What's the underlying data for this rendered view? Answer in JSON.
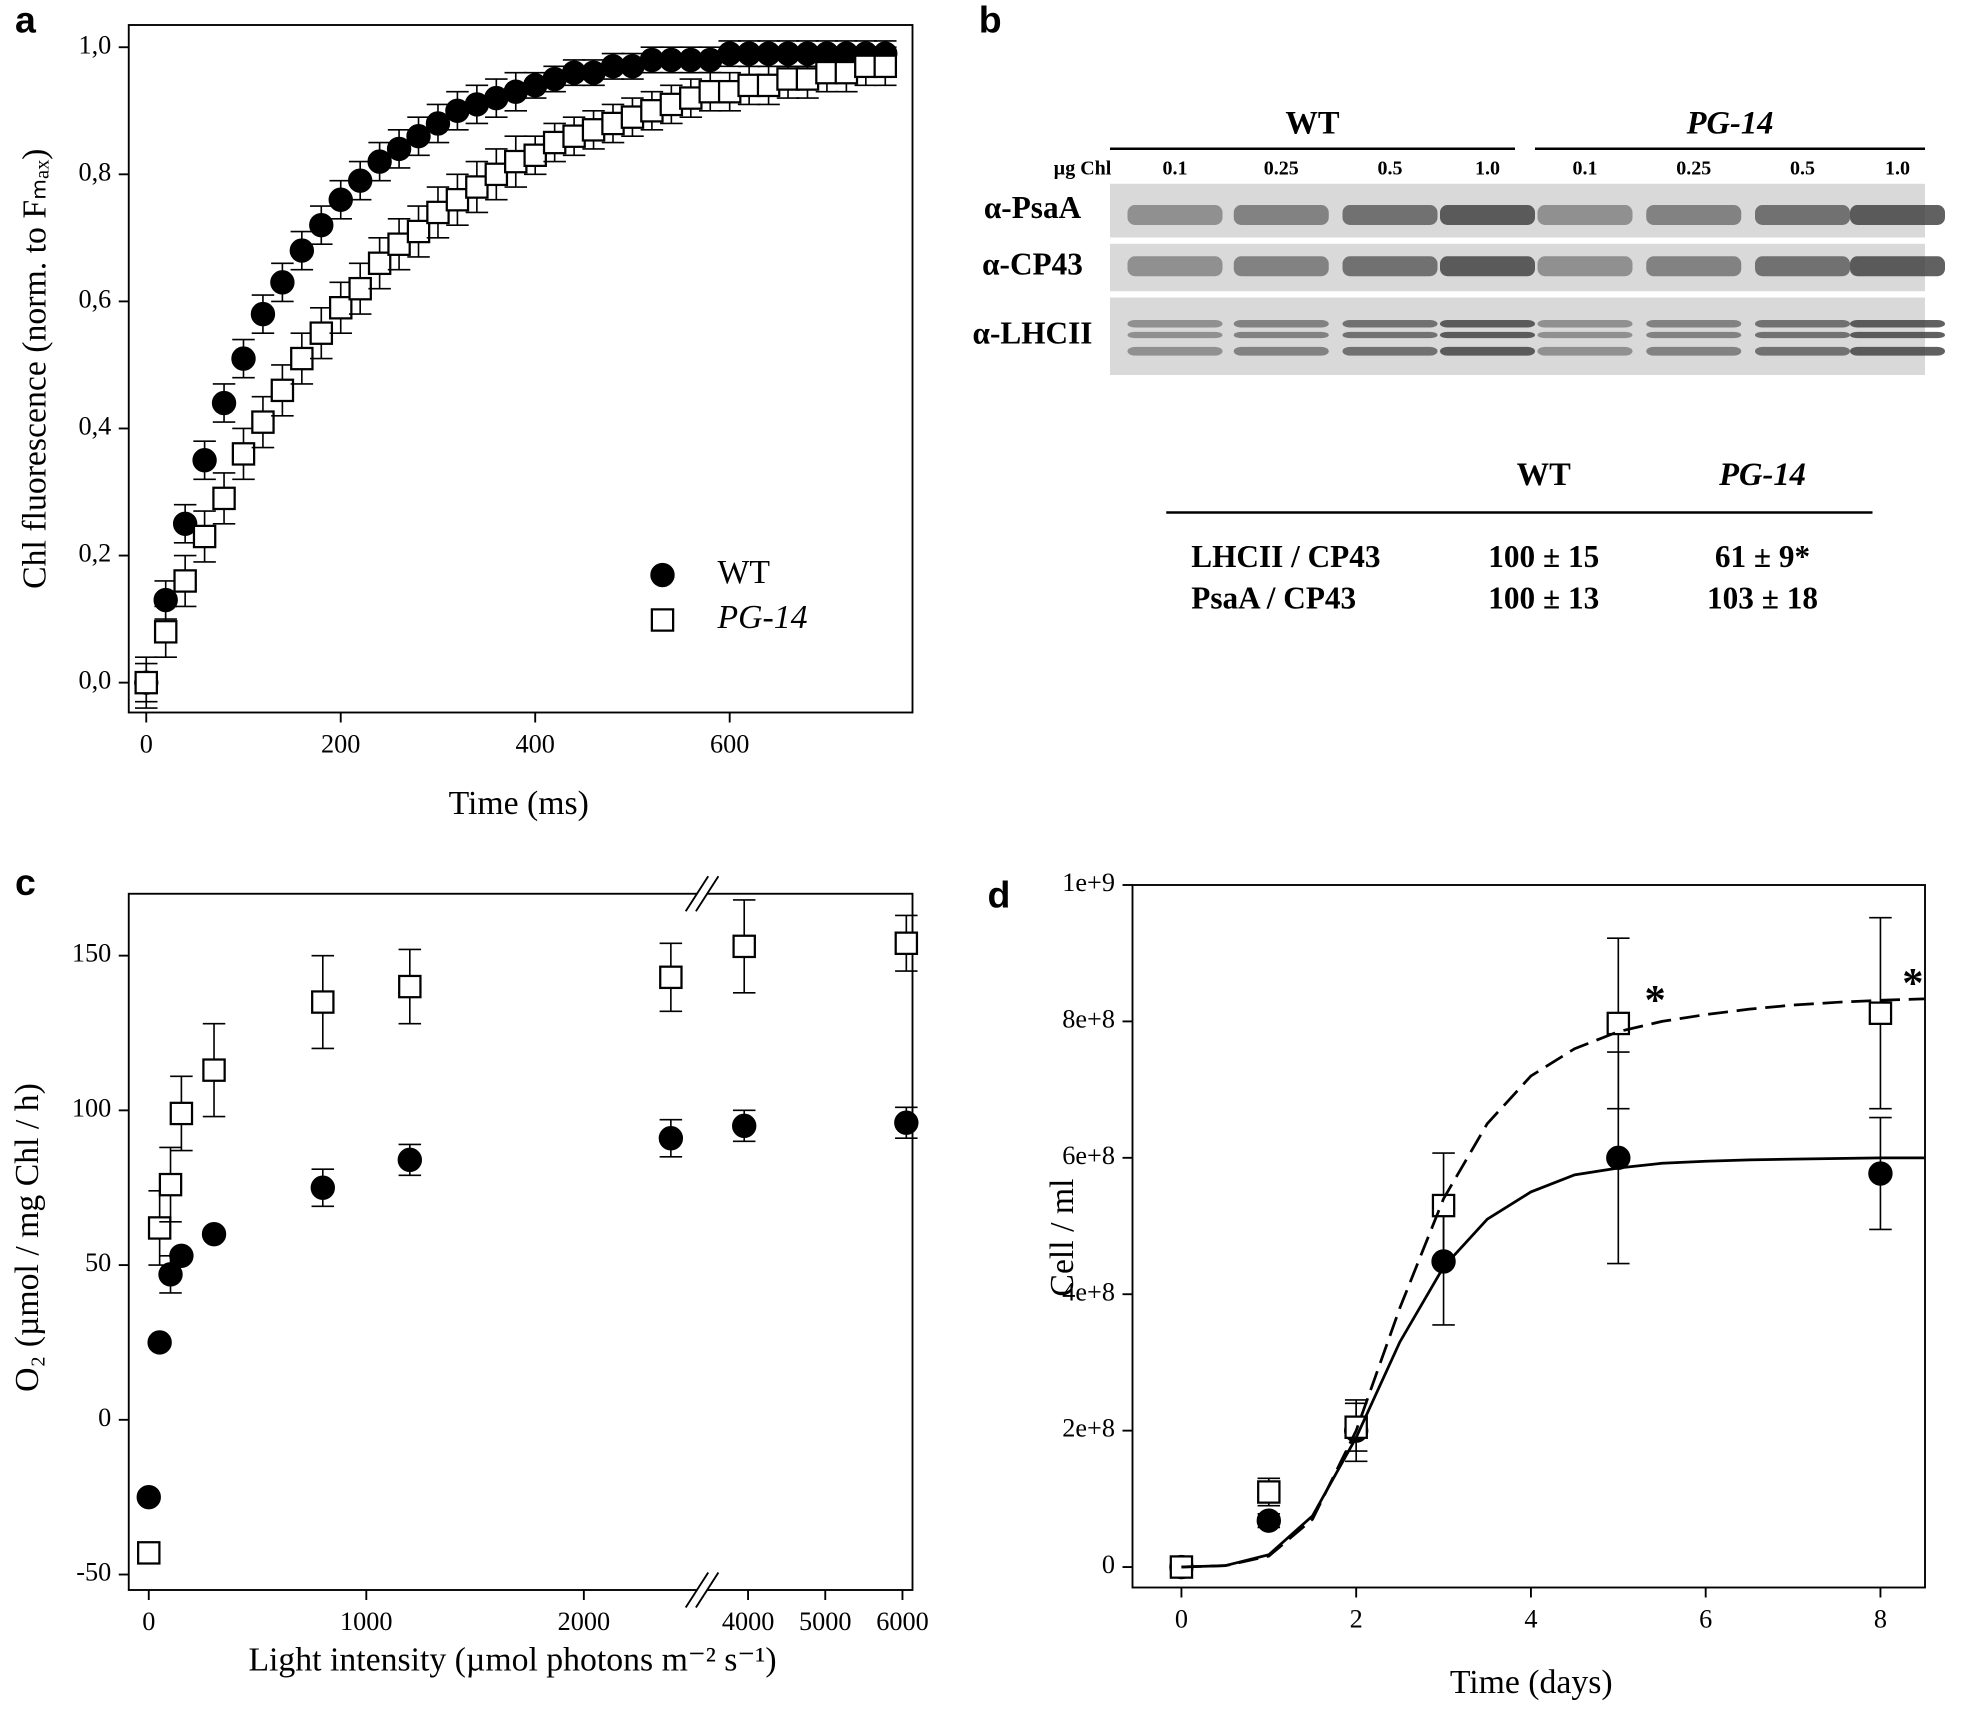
{
  "chart_data": [
    {
      "panel_label": "a",
      "type": "scatter",
      "xlabel": "Time (ms)",
      "ylabel": "Chl fluorescence (norm. to Fₘₐₓ)",
      "xlim": [
        -18,
        788
      ],
      "ylim": [
        -0.047,
        1.035
      ],
      "xticks": [
        0,
        200,
        400,
        600
      ],
      "yticks": [
        {
          "value": 0,
          "label": "0,0"
        },
        {
          "value": 0.2,
          "label": "0,2"
        },
        {
          "value": 0.4,
          "label": "0,4"
        },
        {
          "value": 0.6,
          "label": "0,6"
        },
        {
          "value": 0.8,
          "label": "0,8"
        },
        {
          "value": 1,
          "label": "1,0"
        }
      ],
      "legend": "lower right",
      "series": [
        {
          "name": "WT",
          "marker": "circle",
          "color": "#000000",
          "fill": "#000000",
          "italic": false,
          "x": [
            0,
            20,
            40,
            60,
            80,
            100,
            120,
            140,
            160,
            180,
            200,
            220,
            240,
            260,
            280,
            300,
            320,
            340,
            360,
            380,
            400,
            420,
            440,
            460,
            480,
            500,
            520,
            540,
            560,
            580,
            600,
            620,
            640,
            660,
            680,
            700,
            720,
            740,
            760
          ],
          "values": [
            0,
            0.13,
            0.25,
            0.35,
            0.44,
            0.51,
            0.58,
            0.63,
            0.68,
            0.72,
            0.76,
            0.79,
            0.82,
            0.84,
            0.86,
            0.88,
            0.9,
            0.91,
            0.92,
            0.93,
            0.94,
            0.95,
            0.96,
            0.96,
            0.97,
            0.97,
            0.98,
            0.98,
            0.98,
            0.98,
            0.99,
            0.99,
            0.99,
            0.99,
            0.99,
            0.99,
            0.99,
            0.99,
            0.99
          ],
          "errors": [
            0.03,
            0.03,
            0.03,
            0.03,
            0.03,
            0.03,
            0.03,
            0.03,
            0.03,
            0.03,
            0.03,
            0.03,
            0.03,
            0.03,
            0.03,
            0.03,
            0.03,
            0.03,
            0.03,
            0.03,
            0.02,
            0.02,
            0.02,
            0.02,
            0.02,
            0.02,
            0.02,
            0.02,
            0.02,
            0.02,
            0.02,
            0.02,
            0.02,
            0.02,
            0.02,
            0.02,
            0.02,
            0.02,
            0.02
          ]
        },
        {
          "name": "PG-14",
          "marker": "square",
          "color": "#000000",
          "fill": "#ffffff",
          "italic": true,
          "x": [
            0,
            20,
            40,
            60,
            80,
            100,
            120,
            140,
            160,
            180,
            200,
            220,
            240,
            260,
            280,
            300,
            320,
            340,
            360,
            380,
            400,
            420,
            440,
            460,
            480,
            500,
            520,
            540,
            560,
            580,
            600,
            620,
            640,
            660,
            680,
            700,
            720,
            740,
            760
          ],
          "values": [
            0,
            0.08,
            0.16,
            0.23,
            0.29,
            0.36,
            0.41,
            0.46,
            0.51,
            0.55,
            0.59,
            0.62,
            0.66,
            0.69,
            0.71,
            0.74,
            0.76,
            0.78,
            0.8,
            0.82,
            0.83,
            0.85,
            0.86,
            0.87,
            0.88,
            0.89,
            0.9,
            0.91,
            0.92,
            0.93,
            0.93,
            0.94,
            0.94,
            0.95,
            0.95,
            0.96,
            0.96,
            0.97,
            0.97
          ],
          "errors": [
            0.04,
            0.04,
            0.04,
            0.04,
            0.04,
            0.04,
            0.04,
            0.04,
            0.04,
            0.04,
            0.04,
            0.04,
            0.04,
            0.04,
            0.04,
            0.04,
            0.04,
            0.04,
            0.04,
            0.04,
            0.03,
            0.03,
            0.03,
            0.03,
            0.03,
            0.03,
            0.03,
            0.03,
            0.03,
            0.03,
            0.03,
            0.03,
            0.03,
            0.03,
            0.03,
            0.03,
            0.03,
            0.03,
            0.03
          ]
        }
      ]
    },
    {
      "panel_label": "c",
      "type": "scatter",
      "xlabel": "Light intensity (µmol photons m⁻² s⁻¹)",
      "ylabel": "O₂ (µmol / mg Chl / h)",
      "xsegments": [
        [
          -92,
          2520
        ],
        [
          3470,
          6130
        ]
      ],
      "ylim": [
        -55,
        170
      ],
      "xticks": [
        0,
        1000,
        2000,
        4000,
        5000,
        6000
      ],
      "yticks": [
        -50,
        0,
        50,
        100,
        150
      ],
      "series": [
        {
          "name": "WT",
          "marker": "circle",
          "color": "#000000",
          "fill": "#000000",
          "x": [
            0,
            50,
            100,
            150,
            300,
            800,
            1200,
            2400,
            3950,
            6050
          ],
          "values": [
            -25,
            25,
            47,
            53,
            60,
            75,
            84,
            91,
            95,
            96
          ],
          "errors": [
            null,
            null,
            6,
            null,
            null,
            6,
            5,
            6,
            5,
            5
          ]
        },
        {
          "name": "PG-14",
          "marker": "square",
          "color": "#000000",
          "fill": "#ffffff",
          "x": [
            0,
            50,
            100,
            150,
            300,
            800,
            1200,
            2400,
            3950,
            6050
          ],
          "values": [
            -43,
            62,
            76,
            99,
            113,
            135,
            140,
            143,
            153,
            154
          ],
          "errors": [
            null,
            12,
            12,
            12,
            15,
            15,
            12,
            11,
            15,
            9
          ]
        }
      ]
    },
    {
      "panel_label": "d",
      "type": "scatter",
      "xlabel": "Time (days)",
      "ylabel": "Cell / ml",
      "xlim": [
        -0.56,
        8.51
      ],
      "ylim": [
        -30000000.0,
        1000000000.0
      ],
      "xticks": [
        0,
        2,
        4,
        6,
        8
      ],
      "yticks": [
        0,
        {
          "value": 200000000.0,
          "label": "2e+8"
        },
        {
          "value": 400000000.0,
          "label": "4e+8"
        },
        {
          "value": 600000000.0,
          "label": "6e+8"
        },
        {
          "value": 800000000.0,
          "label": "8e+8"
        },
        {
          "value": 1000000000.0,
          "label": "1e+9"
        }
      ],
      "series": [
        {
          "name": "WT",
          "marker": "circle",
          "color": "#000000",
          "fill": "#000000",
          "x": [
            0,
            1,
            2,
            3,
            5,
            8
          ],
          "values": [
            0,
            68000000.0,
            200000000.0,
            448000000.0,
            600000000.0,
            577000000.0
          ],
          "errors": [
            null,
            10000000.0,
            45000000.0,
            93000000.0,
            155000000.0,
            82000000.0
          ]
        },
        {
          "name": "PG-14",
          "marker": "square",
          "color": "#000000",
          "fill": "#ffffff",
          "x": [
            0,
            1,
            2,
            3,
            5,
            8
          ],
          "values": [
            0,
            110000000.0,
            205000000.0,
            530000000.0,
            797000000.0,
            812000000.0
          ],
          "errors": [
            null,
            20000000.0,
            35000000.0,
            77000000.0,
            125000000.0,
            140000000.0
          ]
        },
        {
          "style": "line",
          "dash": false,
          "color": "#000000",
          "x": [
            0,
            0.5,
            1,
            1.5,
            2,
            2.5,
            3,
            3.5,
            4,
            4.5,
            5,
            5.5,
            6,
            6.5,
            7,
            7.5,
            8,
            8.5
          ],
          "values": [
            0,
            2000000.0,
            18000000.0,
            75000000.0,
            190000000.0,
            330000000.0,
            440000000.0,
            510000000.0,
            550000000.0,
            575000000.0,
            585000000.0,
            592000000.0,
            595000000.0,
            597000000.0,
            598000000.0,
            599000000.0,
            600000000.0,
            600000000.0
          ]
        },
        {
          "style": "line",
          "dash": true,
          "color": "#000000",
          "x": [
            0,
            0.5,
            1,
            1.5,
            2,
            2.5,
            3,
            3.5,
            4,
            4.5,
            5,
            5.5,
            6,
            6.5,
            7,
            7.5,
            8,
            8.5
          ],
          "values": [
            0,
            2000000.0,
            16000000.0,
            70000000.0,
            200000000.0,
            380000000.0,
            540000000.0,
            650000000.0,
            720000000.0,
            760000000.0,
            785000000.0,
            800000000.0,
            810000000.0,
            818000000.0,
            824000000.0,
            828000000.0,
            831000000.0,
            833000000.0
          ]
        }
      ],
      "annotations": [
        {
          "text": "*",
          "x": 5.3,
          "y": 825000000.0
        },
        {
          "text": "*",
          "x": 8.25,
          "y": 850000000.0
        }
      ]
    }
  ],
  "blot": {
    "panel_label": "b",
    "load_label": "µg Chl",
    "groups": [
      {
        "name": "WT",
        "italic": false,
        "lanes": [
          0.1,
          0.25,
          0.5,
          {
            "value": 1,
            "label": "1.0"
          }
        ]
      },
      {
        "name": "PG-14",
        "italic": true,
        "lanes": [
          0.1,
          0.25,
          0.5,
          {
            "value": 1,
            "label": "1.0"
          }
        ]
      }
    ],
    "rows": [
      "α-PsaA",
      "α-CP43",
      "α-LHCII"
    ],
    "table": {
      "columns": [
        "WT",
        "PG-14"
      ],
      "rows": [
        [
          "LHCII / CP43",
          "100 ± 15",
          "61 ± 9*"
        ],
        [
          "PsaA / CP43",
          "100 ± 13",
          "103 ± 18"
        ]
      ]
    }
  }
}
